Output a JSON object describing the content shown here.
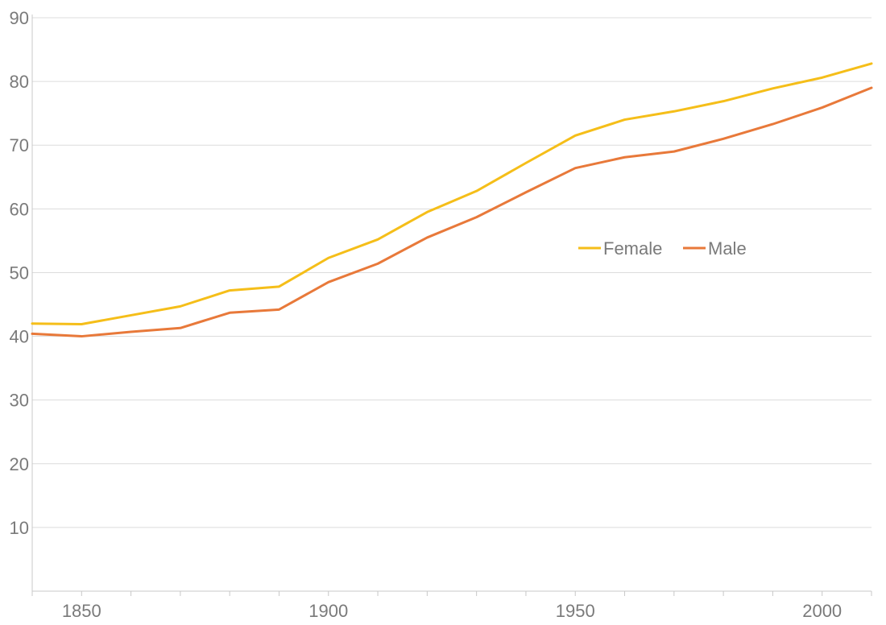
{
  "chart_data": {
    "type": "line",
    "title": "",
    "xlabel": "",
    "ylabel": "",
    "xlim": [
      1840,
      2010
    ],
    "ylim": [
      0,
      90
    ],
    "x_ticks": [
      1850,
      1900,
      1950,
      2000
    ],
    "y_ticks": [
      10,
      20,
      30,
      40,
      50,
      60,
      70,
      80,
      90
    ],
    "grid": "horizontal",
    "legend": "center-right, inside plot",
    "x": [
      1840,
      1850,
      1860,
      1870,
      1880,
      1890,
      1900,
      1910,
      1920,
      1930,
      1940,
      1950,
      1960,
      1970,
      1980,
      1990,
      2000,
      2010
    ],
    "series": [
      {
        "name": "Female",
        "color": "#f5be19",
        "values": [
          42.0,
          41.9,
          43.3,
          44.7,
          47.2,
          47.8,
          52.3,
          55.2,
          59.5,
          62.8,
          67.2,
          71.5,
          74.0,
          75.3,
          76.9,
          78.9,
          80.6,
          82.8
        ]
      },
      {
        "name": "Male",
        "color": "#e8793a",
        "values": [
          40.4,
          40.0,
          40.7,
          41.3,
          43.7,
          44.2,
          48.5,
          51.4,
          55.5,
          58.7,
          62.6,
          66.4,
          68.1,
          69.0,
          71.0,
          73.3,
          75.9,
          79.0
        ]
      }
    ]
  }
}
